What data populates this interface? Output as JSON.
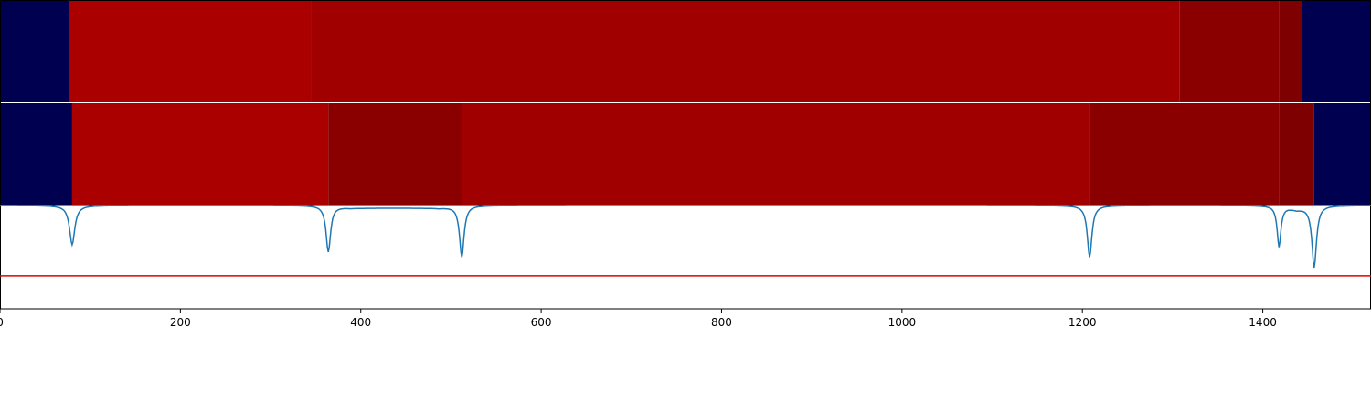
{
  "chart_data": [
    {
      "type": "heatmap",
      "row": 1,
      "segment_colors": [
        "#000050",
        "#aa0000",
        "#a10000",
        "#8a0000",
        "#7e0000",
        "#000050"
      ],
      "segments": [
        {
          "x0": 0,
          "x1": 76,
          "level": 0
        },
        {
          "x0": 76,
          "x1": 345,
          "level": 1
        },
        {
          "x0": 345,
          "x1": 1308,
          "level": 2
        },
        {
          "x0": 1308,
          "x1": 1418,
          "level": 3
        },
        {
          "x0": 1418,
          "x1": 1443,
          "level": 4
        },
        {
          "x0": 1443,
          "x1": 1520,
          "level": 0
        }
      ]
    },
    {
      "type": "heatmap",
      "row": 2,
      "segment_colors": [
        "#000050",
        "#aa0000",
        "#8a0000",
        "#a10000",
        "#7e0000"
      ],
      "segments": [
        {
          "x0": 0,
          "x1": 80,
          "level": 0
        },
        {
          "x0": 80,
          "x1": 364,
          "level": 1
        },
        {
          "x0": 364,
          "x1": 512,
          "level": 2
        },
        {
          "x0": 512,
          "x1": 1208,
          "level": 3
        },
        {
          "x0": 1208,
          "x1": 1418,
          "level": 2
        },
        {
          "x0": 1418,
          "x1": 1457,
          "level": 4
        },
        {
          "x0": 1457,
          "x1": 1520,
          "level": 0
        }
      ]
    },
    {
      "type": "line",
      "xlim": [
        0,
        1520
      ],
      "ylim": [
        0,
        1
      ],
      "baseline": 1.0,
      "threshold": 0.32,
      "line_color": "#1f77b4",
      "threshold_color": "#e00000",
      "dips": [
        {
          "x": 80,
          "depth": 0.38,
          "width": 3.5
        },
        {
          "x": 364,
          "depth": 0.45,
          "width": 3.0
        },
        {
          "x": 512,
          "depth": 0.5,
          "width": 3.0
        },
        {
          "x": 1208,
          "depth": 0.5,
          "width": 3.0
        },
        {
          "x": 1418,
          "depth": 0.4,
          "width": 2.5
        },
        {
          "x": 1457,
          "depth": 0.6,
          "width": 3.0
        }
      ],
      "plateaus": [
        {
          "x0": 364,
          "x1": 512,
          "level": 0.975
        },
        {
          "x0": 1418,
          "x1": 1457,
          "level": 0.955
        }
      ],
      "xticks": [
        0,
        200,
        400,
        600,
        800,
        1000,
        1200,
        1400
      ]
    }
  ]
}
